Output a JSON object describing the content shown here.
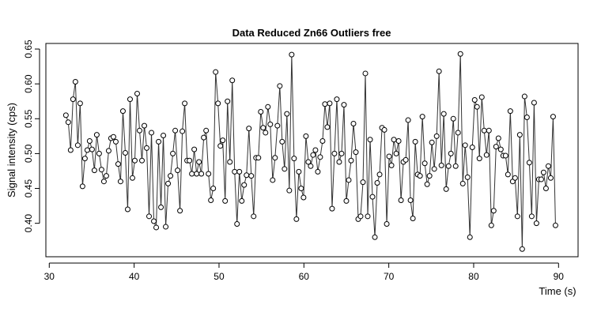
{
  "chart_data": {
    "type": "line",
    "title": "Data Reduced Zn66 Outliers free",
    "x_label": "Time (s)",
    "y_label": "Signal intensity (cps)",
    "x": [
      31.96,
      32.24,
      32.52,
      32.8,
      33.08,
      33.36,
      33.64,
      33.92,
      34.2,
      34.48,
      34.76,
      35.04,
      35.32,
      35.6,
      35.88,
      36.16,
      36.44,
      36.72,
      37,
      37.28,
      37.56,
      37.84,
      38.12,
      38.4,
      38.68,
      38.96,
      39.24,
      39.52,
      39.8,
      40.08,
      40.36,
      40.64,
      40.92,
      41.2,
      41.48,
      41.76,
      42.04,
      42.32,
      42.6,
      42.88,
      43.16,
      43.44,
      43.72,
      44,
      44.28,
      44.56,
      44.84,
      45.12,
      45.4,
      45.68,
      45.96,
      46.24,
      46.52,
      46.8,
      47.08,
      47.36,
      47.64,
      47.92,
      48.2,
      48.48,
      48.76,
      49.04,
      49.32,
      49.6,
      49.88,
      50.16,
      50.44,
      50.72,
      51,
      51.28,
      51.56,
      51.84,
      52.12,
      52.4,
      52.68,
      52.96,
      53.24,
      53.52,
      53.8,
      54.08,
      54.36,
      54.64,
      54.92,
      55.2,
      55.48,
      55.76,
      56.04,
      56.32,
      56.6,
      56.88,
      57.16,
      57.44,
      57.72,
      58,
      58.28,
      58.56,
      58.84,
      59.12,
      59.4,
      59.68,
      59.96,
      60.24,
      60.52,
      60.8,
      61.08,
      61.36,
      61.64,
      61.92,
      62.2,
      62.48,
      62.76,
      63.04,
      63.32,
      63.6,
      63.88,
      64.16,
      64.44,
      64.72,
      65,
      65.28,
      65.56,
      65.84,
      66.12,
      66.4,
      66.68,
      66.96,
      67.24,
      67.52,
      67.8,
      68.08,
      68.36,
      68.64,
      68.92,
      69.2,
      69.48,
      69.76,
      70.04,
      70.32,
      70.6,
      70.88,
      71.16,
      71.44,
      71.72,
      72,
      72.28,
      72.56,
      72.84,
      73.12,
      73.4,
      73.68,
      73.96,
      74.24,
      74.52,
      74.8,
      75.08,
      75.36,
      75.64,
      75.92,
      76.2,
      76.48,
      76.76,
      77.04,
      77.32,
      77.6,
      77.88,
      78.16,
      78.44,
      78.72,
      79,
      79.28,
      79.56,
      79.84,
      80.12,
      80.4,
      80.68,
      80.96,
      81.24,
      81.52,
      81.8,
      82.08,
      82.36,
      82.64,
      82.92,
      83.2,
      83.48,
      83.76,
      84.04,
      84.32,
      84.6,
      84.88,
      85.16,
      85.44,
      85.72,
      86,
      86.28,
      86.56,
      86.84,
      87.12,
      87.4,
      87.68,
      87.96,
      88.24,
      88.52,
      88.8,
      89.08,
      89.36,
      89.64
    ],
    "series": [
      {
        "color": "#333333",
        "values": [
          0.555,
          0.545,
          0.505,
          0.578,
          0.603,
          0.512,
          0.572,
          0.453,
          0.493,
          0.505,
          0.518,
          0.506,
          0.476,
          0.527,
          0.5,
          0.477,
          0.46,
          0.468,
          0.504,
          0.522,
          0.524,
          0.517,
          0.485,
          0.46,
          0.561,
          0.501,
          0.42,
          0.578,
          0.465,
          0.49,
          0.586,
          0.533,
          0.49,
          0.54,
          0.508,
          0.41,
          0.53,
          0.403,
          0.394,
          0.517,
          0.423,
          0.526,
          0.395,
          0.457,
          0.468,
          0.5,
          0.533,
          0.476,
          0.418,
          0.532,
          0.572,
          0.49,
          0.49,
          0.471,
          0.506,
          0.471,
          0.488,
          0.471,
          0.523,
          0.533,
          0.471,
          0.433,
          0.45,
          0.617,
          0.572,
          0.511,
          0.519,
          0.432,
          0.575,
          0.488,
          0.605,
          0.474,
          0.399,
          0.474,
          0.432,
          0.455,
          0.469,
          0.536,
          0.468,
          0.41,
          0.494,
          0.494,
          0.56,
          0.537,
          0.53,
          0.567,
          0.542,
          0.462,
          0.494,
          0.54,
          0.597,
          0.517,
          0.478,
          0.557,
          0.447,
          0.642,
          0.493,
          0.406,
          0.474,
          0.45,
          0.437,
          0.525,
          0.488,
          0.482,
          0.498,
          0.505,
          0.474,
          0.495,
          0.518,
          0.571,
          0.538,
          0.572,
          0.421,
          0.5,
          0.578,
          0.488,
          0.5,
          0.57,
          0.432,
          0.462,
          0.49,
          0.543,
          0.502,
          0.406,
          0.41,
          0.459,
          0.615,
          0.41,
          0.52,
          0.438,
          0.38,
          0.458,
          0.47,
          0.537,
          0.534,
          0.399,
          0.496,
          0.483,
          0.52,
          0.5,
          0.518,
          0.433,
          0.488,
          0.491,
          0.548,
          0.433,
          0.407,
          0.517,
          0.47,
          0.468,
          0.553,
          0.486,
          0.456,
          0.468,
          0.516,
          0.478,
          0.525,
          0.618,
          0.483,
          0.557,
          0.449,
          0.482,
          0.5,
          0.55,
          0.482,
          0.53,
          0.643,
          0.457,
          0.512,
          0.466,
          0.38,
          0.509,
          0.577,
          0.567,
          0.493,
          0.581,
          0.533,
          0.498,
          0.533,
          0.397,
          0.418,
          0.51,
          0.522,
          0.506,
          0.497,
          0.497,
          0.47,
          0.561,
          0.46,
          0.465,
          0.41,
          0.527,
          0.363,
          0.582,
          0.552,
          0.487,
          0.41,
          0.573,
          0.4,
          0.463,
          0.463,
          0.473,
          0.45,
          0.482,
          0.465,
          0.553,
          0.397
        ]
      }
    ],
    "xlim": [
      29.6,
      92.3
    ],
    "xticks": [
      30,
      40,
      50,
      60,
      70,
      80,
      90
    ],
    "ylim": [
      0.352,
      0.658
    ],
    "yticks": [
      {
        "value": 0.4,
        "label": "0.40"
      },
      {
        "value": 0.45,
        "label": "0.45"
      },
      {
        "value": 0.5,
        "label": "0.50"
      },
      {
        "value": 0.55,
        "label": "0.55"
      },
      {
        "value": 0.6,
        "label": "0.60"
      },
      {
        "value": 0.65,
        "label": "0.65"
      }
    ]
  }
}
